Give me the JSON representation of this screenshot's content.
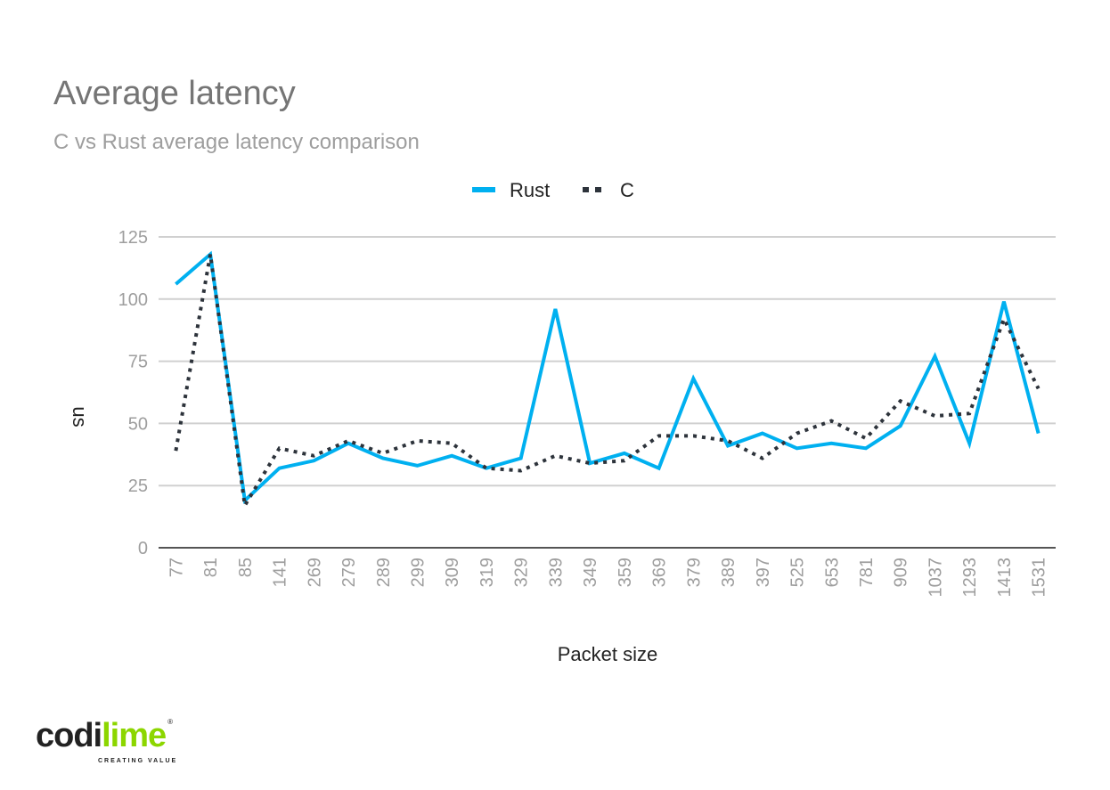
{
  "chart_data": {
    "type": "line",
    "title": "Average latency",
    "subtitle": "C vs Rust average latency comparison",
    "xlabel": "Packet size",
    "ylabel": "us",
    "ylim": [
      0,
      125
    ],
    "yticks": [
      0,
      25,
      50,
      75,
      100,
      125
    ],
    "grid": true,
    "legend": "top-center",
    "categories": [
      "77",
      "81",
      "85",
      "141",
      "269",
      "279",
      "289",
      "299",
      "309",
      "319",
      "329",
      "339",
      "349",
      "359",
      "369",
      "379",
      "389",
      "397",
      "525",
      "653",
      "781",
      "909",
      "1037",
      "1293",
      "1413",
      "1531"
    ],
    "series": [
      {
        "name": "Rust",
        "color": "#00b0f0",
        "style": "solid",
        "values": [
          106,
          118,
          19,
          32,
          35,
          42,
          36,
          33,
          37,
          32,
          36,
          96,
          34,
          38,
          32,
          68,
          41,
          46,
          40,
          42,
          40,
          49,
          77,
          42,
          99,
          46
        ]
      },
      {
        "name": "C",
        "color": "#2d333b",
        "style": "dotted",
        "values": [
          39,
          118,
          17,
          40,
          37,
          43,
          38,
          43,
          42,
          32,
          31,
          37,
          34,
          35,
          45,
          45,
          43,
          36,
          46,
          51,
          44,
          59,
          53,
          54,
          92,
          64
        ]
      }
    ]
  },
  "logo": {
    "text_dark": "codi",
    "text_light": "lime",
    "tagline": "CREATING VALUE",
    "reg": "®"
  }
}
